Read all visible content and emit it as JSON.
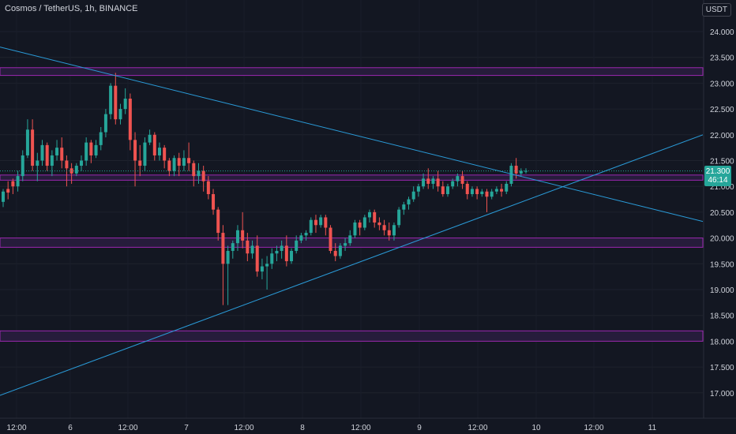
{
  "header": {
    "title": "Cosmos / TetherUS, 1h, BINANCE",
    "currency": "USDT"
  },
  "last_price": {
    "value": "21.300",
    "countdown": "46:14"
  },
  "colors": {
    "background": "#131722",
    "up": "#26a69a",
    "down": "#ef5350",
    "trendline": "#2a9bd8",
    "zone_fill": "#2a1d3f",
    "zone_border": "#9c27b0",
    "text": "#d1d4dc"
  },
  "chart_data": {
    "type": "candlestick",
    "symbol": "Cosmos / TetherUS",
    "interval": "1h",
    "exchange": "BINANCE",
    "y_ticks": [
      "24.000",
      "23.500",
      "23.000",
      "22.500",
      "22.000",
      "21.500",
      "21.000",
      "20.500",
      "20.000",
      "19.500",
      "19.000",
      "18.500",
      "18.000",
      "17.500",
      "17.000"
    ],
    "x_ticks": [
      "12:00",
      "6",
      "12:00",
      "7",
      "12:00",
      "8",
      "12:00",
      "9",
      "12:00",
      "10",
      "12:00",
      "11"
    ],
    "ylim": [
      16.7,
      24.3
    ],
    "zones": [
      {
        "low": 23.15,
        "high": 23.3
      },
      {
        "low": 21.12,
        "high": 21.22
      },
      {
        "low": 19.82,
        "high": 20.0
      },
      {
        "low": 18.0,
        "high": 18.2
      }
    ],
    "trendlines": [
      {
        "name": "descending",
        "y_start": 23.7,
        "y_end": 20.32
      },
      {
        "name": "ascending",
        "y_start": 16.95,
        "y_end": 22.0
      }
    ],
    "candles": [
      [
        20.7,
        20.95,
        20.9,
        20.6
      ],
      [
        20.95,
        21.1,
        20.88,
        20.75
      ],
      [
        21.1,
        21.15,
        21.0,
        20.85
      ],
      [
        21.0,
        21.3,
        21.2,
        20.9
      ],
      [
        21.2,
        21.7,
        21.6,
        21.1
      ],
      [
        21.6,
        22.3,
        22.1,
        21.55
      ],
      [
        22.1,
        22.3,
        21.4,
        21.3
      ],
      [
        21.4,
        21.65,
        21.5,
        21.1
      ],
      [
        21.5,
        21.9,
        21.8,
        21.4
      ],
      [
        21.8,
        21.85,
        21.4,
        21.3
      ],
      [
        21.4,
        21.7,
        21.6,
        21.2
      ],
      [
        21.6,
        21.9,
        21.75,
        21.5
      ],
      [
        21.75,
        21.95,
        21.5,
        21.35
      ],
      [
        21.5,
        21.6,
        21.35,
        21.0
      ],
      [
        21.35,
        21.45,
        21.25,
        21.05
      ],
      [
        21.25,
        21.45,
        21.4,
        21.2
      ],
      [
        21.4,
        21.6,
        21.5,
        21.3
      ],
      [
        21.5,
        21.95,
        21.85,
        21.4
      ],
      [
        21.85,
        21.9,
        21.6,
        21.45
      ],
      [
        21.6,
        21.9,
        21.8,
        21.55
      ],
      [
        21.8,
        22.15,
        22.05,
        21.7
      ],
      [
        22.05,
        22.5,
        22.4,
        21.95
      ],
      [
        22.4,
        23.0,
        22.95,
        22.3
      ],
      [
        22.95,
        23.2,
        22.3,
        22.2
      ],
      [
        22.3,
        22.6,
        22.5,
        22.2
      ],
      [
        22.5,
        22.9,
        22.7,
        22.4
      ],
      [
        22.7,
        22.8,
        21.9,
        21.7
      ],
      [
        21.9,
        22.05,
        21.5,
        21.0
      ],
      [
        21.5,
        21.8,
        21.4,
        21.2
      ],
      [
        21.4,
        21.95,
        21.85,
        21.3
      ],
      [
        21.85,
        22.1,
        22.0,
        21.8
      ],
      [
        22.0,
        22.05,
        21.6,
        21.5
      ],
      [
        21.6,
        21.85,
        21.75,
        21.5
      ],
      [
        21.75,
        21.8,
        21.5,
        21.35
      ],
      [
        21.5,
        21.55,
        21.3,
        21.2
      ],
      [
        21.3,
        21.6,
        21.55,
        21.2
      ],
      [
        21.55,
        21.65,
        21.4,
        21.2
      ],
      [
        21.4,
        21.7,
        21.55,
        21.3
      ],
      [
        21.55,
        21.85,
        21.45,
        21.3
      ],
      [
        21.45,
        21.5,
        21.2,
        21.0
      ],
      [
        21.2,
        21.45,
        21.3,
        21.05
      ],
      [
        21.3,
        21.4,
        21.1,
        20.9
      ],
      [
        21.1,
        21.2,
        20.85,
        20.75
      ],
      [
        20.85,
        20.95,
        20.55,
        20.45
      ],
      [
        20.55,
        20.6,
        20.1,
        19.95
      ],
      [
        20.1,
        20.25,
        19.5,
        18.7
      ],
      [
        19.5,
        19.85,
        19.75,
        18.7
      ],
      [
        19.75,
        19.95,
        19.9,
        19.6
      ],
      [
        19.9,
        20.25,
        20.15,
        19.75
      ],
      [
        20.15,
        20.5,
        19.95,
        19.8
      ],
      [
        19.95,
        20.1,
        19.7,
        19.55
      ],
      [
        19.7,
        19.95,
        19.85,
        19.6
      ],
      [
        19.85,
        20.05,
        19.35,
        19.25
      ],
      [
        19.35,
        19.6,
        19.45,
        19.2
      ],
      [
        19.45,
        19.65,
        19.5,
        19.0
      ],
      [
        19.5,
        19.8,
        19.7,
        19.4
      ],
      [
        19.7,
        19.85,
        19.75,
        19.55
      ],
      [
        19.75,
        19.95,
        19.85,
        19.6
      ],
      [
        19.85,
        20.05,
        19.55,
        19.45
      ],
      [
        19.55,
        19.8,
        19.75,
        19.5
      ],
      [
        19.75,
        20.05,
        19.95,
        19.7
      ],
      [
        19.95,
        20.1,
        20.05,
        19.9
      ],
      [
        20.05,
        20.15,
        20.1,
        19.95
      ],
      [
        20.1,
        20.4,
        20.35,
        20.05
      ],
      [
        20.35,
        20.45,
        20.25,
        20.1
      ],
      [
        20.25,
        20.45,
        20.4,
        20.2
      ],
      [
        20.4,
        20.45,
        20.2,
        20.05
      ],
      [
        20.2,
        20.25,
        19.75,
        19.7
      ],
      [
        19.75,
        19.9,
        19.65,
        19.55
      ],
      [
        19.65,
        19.9,
        19.85,
        19.6
      ],
      [
        19.85,
        20.0,
        19.9,
        19.75
      ],
      [
        19.9,
        20.15,
        20.05,
        19.85
      ],
      [
        20.05,
        20.35,
        20.3,
        20.0
      ],
      [
        20.3,
        20.35,
        20.2,
        20.05
      ],
      [
        20.2,
        20.45,
        20.4,
        20.15
      ],
      [
        20.4,
        20.55,
        20.5,
        20.3
      ],
      [
        20.5,
        20.55,
        20.3,
        20.2
      ],
      [
        20.3,
        20.4,
        20.25,
        20.15
      ],
      [
        20.25,
        20.35,
        20.15,
        20.05
      ],
      [
        20.15,
        20.3,
        20.05,
        19.95
      ],
      [
        20.05,
        20.3,
        20.25,
        19.95
      ],
      [
        20.25,
        20.6,
        20.55,
        20.2
      ],
      [
        20.55,
        20.7,
        20.65,
        20.45
      ],
      [
        20.65,
        20.8,
        20.75,
        20.55
      ],
      [
        20.75,
        21.0,
        20.9,
        20.7
      ],
      [
        20.9,
        21.05,
        21.0,
        20.8
      ],
      [
        21.0,
        21.25,
        21.15,
        20.95
      ],
      [
        21.15,
        21.35,
        21.05,
        20.95
      ],
      [
        21.05,
        21.2,
        21.15,
        20.95
      ],
      [
        21.15,
        21.3,
        21.0,
        20.9
      ],
      [
        21.0,
        21.1,
        20.85,
        20.8
      ],
      [
        20.85,
        21.05,
        21.0,
        20.8
      ],
      [
        21.0,
        21.15,
        21.1,
        20.95
      ],
      [
        21.1,
        21.25,
        21.2,
        21.0
      ],
      [
        21.2,
        21.3,
        21.05,
        20.95
      ],
      [
        21.05,
        21.1,
        20.85,
        20.75
      ],
      [
        20.85,
        21.0,
        20.95,
        20.8
      ],
      [
        20.95,
        21.0,
        20.85,
        20.75
      ],
      [
        20.85,
        20.95,
        20.9,
        20.8
      ],
      [
        20.9,
        20.95,
        20.8,
        20.5
      ],
      [
        20.8,
        20.95,
        20.9,
        20.75
      ],
      [
        20.9,
        21.0,
        20.95,
        20.85
      ],
      [
        20.95,
        21.05,
        20.9,
        20.8
      ],
      [
        20.9,
        21.1,
        21.05,
        20.85
      ],
      [
        21.05,
        21.45,
        21.4,
        21.0
      ],
      [
        21.4,
        21.55,
        21.25,
        21.15
      ],
      [
        21.25,
        21.35,
        21.3,
        21.2
      ],
      [
        21.3,
        21.35,
        21.3,
        21.25
      ]
    ]
  }
}
